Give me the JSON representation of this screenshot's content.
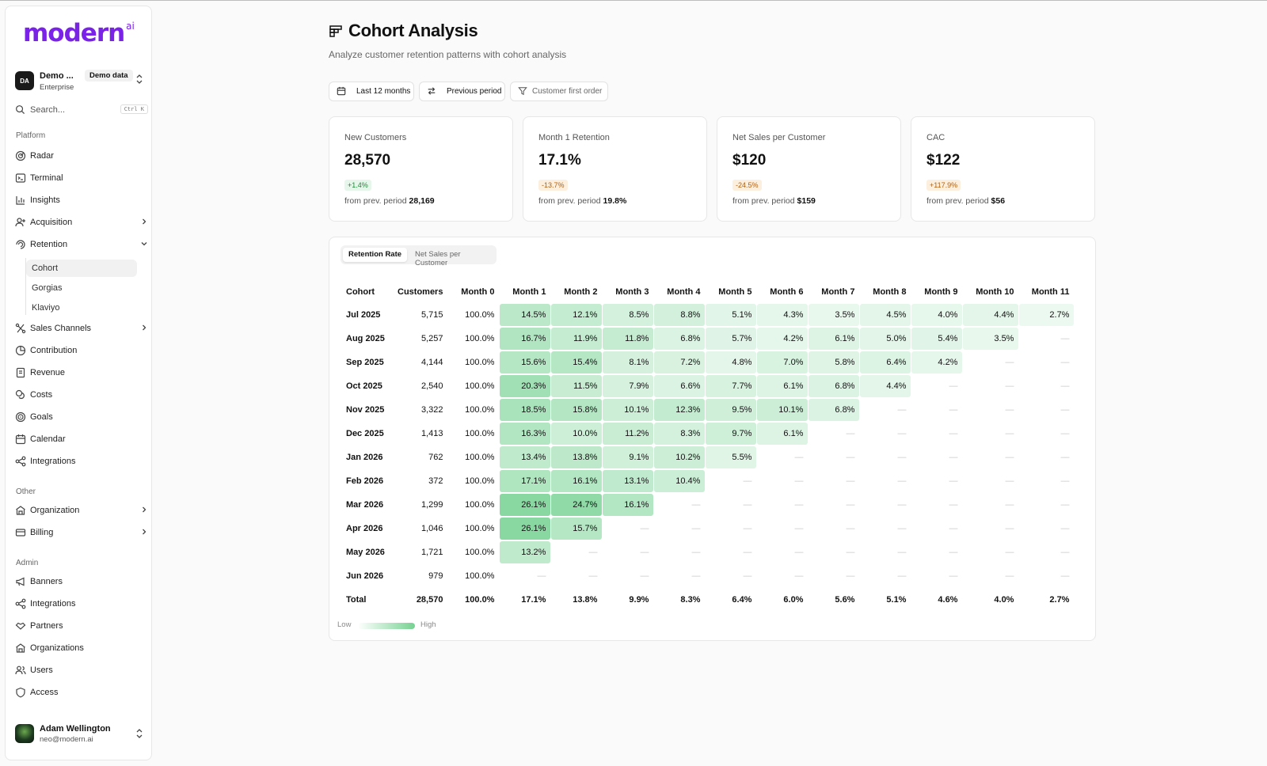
{
  "sidebar": {
    "logo": "modern",
    "logo_sup": "ai",
    "org": {
      "initials": "DA",
      "name": "Demo ...",
      "badge": "Demo data",
      "plan": "Enterprise"
    },
    "search": {
      "placeholder": "Search...",
      "shortcut": "Ctrl K"
    },
    "sections": {
      "platform": "Platform",
      "other": "Other",
      "admin": "Admin"
    },
    "items": {
      "radar": "Radar",
      "terminal": "Terminal",
      "insights": "Insights",
      "acquisition": "Acquisition",
      "retention": "Retention",
      "cohort": "Cohort",
      "gorgias": "Gorgias",
      "klaviyo": "Klaviyo",
      "sales_channels": "Sales Channels",
      "contribution": "Contribution",
      "revenue": "Revenue",
      "costs": "Costs",
      "goals": "Goals",
      "calendar": "Calendar",
      "integrations": "Integrations",
      "organization": "Organization",
      "billing": "Billing",
      "banners": "Banners",
      "admin_integrations": "Integrations",
      "partners": "Partners",
      "organizations": "Organizations",
      "users": "Users",
      "access": "Access"
    },
    "user": {
      "name": "Adam Wellington",
      "email": "neo@modern.ai"
    }
  },
  "header": {
    "title": "Cohort Analysis",
    "subtitle": "Analyze customer retention patterns with cohort analysis"
  },
  "filters": {
    "date": "Last 12 months",
    "compare": "Previous period",
    "cohort_by": "Customer first order"
  },
  "kpis": [
    {
      "label": "New Customers",
      "value": "28,570",
      "delta": "+1.4%",
      "prev_text": "from prev. period",
      "prev_value": "28,169"
    },
    {
      "label": "Month 1 Retention",
      "value": "17.1%",
      "delta": "-13.7%",
      "prev_text": "from prev. period",
      "prev_value": "19.8%"
    },
    {
      "label": "Net Sales per Customer",
      "value": "$120",
      "delta": "-24.5%",
      "prev_text": "from prev. period",
      "prev_value": "$159"
    },
    {
      "label": "CAC",
      "value": "$122",
      "delta": "+117.9%",
      "prev_text": "from prev. period",
      "prev_value": "$56"
    }
  ],
  "table": {
    "tabs": [
      "Retention Rate",
      "Net Sales per Customer"
    ],
    "headers": [
      "Cohort",
      "Customers",
      "Month 0",
      "Month 1",
      "Month 2",
      "Month 3",
      "Month 4",
      "Month 5",
      "Month 6",
      "Month 7",
      "Month 8",
      "Month 9",
      "Month 10",
      "Month 11"
    ],
    "rows": [
      [
        "Jul 2025",
        "5,715",
        "100.0%",
        "14.5%",
        "12.1%",
        "8.5%",
        "8.8%",
        "5.1%",
        "4.3%",
        "3.5%",
        "4.5%",
        "4.0%",
        "4.4%",
        "2.7%"
      ],
      [
        "Aug 2025",
        "5,257",
        "100.0%",
        "16.7%",
        "11.9%",
        "11.8%",
        "6.8%",
        "5.7%",
        "4.2%",
        "6.1%",
        "5.0%",
        "5.4%",
        "3.5%",
        "—"
      ],
      [
        "Sep 2025",
        "4,144",
        "100.0%",
        "15.6%",
        "15.4%",
        "8.1%",
        "7.2%",
        "4.8%",
        "7.0%",
        "5.8%",
        "6.4%",
        "4.2%",
        "—",
        "—"
      ],
      [
        "Oct 2025",
        "2,540",
        "100.0%",
        "20.3%",
        "11.5%",
        "7.9%",
        "6.6%",
        "7.7%",
        "6.1%",
        "6.8%",
        "4.4%",
        "—",
        "—",
        "—"
      ],
      [
        "Nov 2025",
        "3,322",
        "100.0%",
        "18.5%",
        "15.8%",
        "10.1%",
        "12.3%",
        "9.5%",
        "10.1%",
        "6.8%",
        "—",
        "—",
        "—",
        "—"
      ],
      [
        "Dec 2025",
        "1,413",
        "100.0%",
        "16.3%",
        "10.0%",
        "11.2%",
        "8.3%",
        "9.7%",
        "6.1%",
        "—",
        "—",
        "—",
        "—",
        "—"
      ],
      [
        "Jan 2026",
        "762",
        "100.0%",
        "13.4%",
        "13.8%",
        "9.1%",
        "10.2%",
        "5.5%",
        "—",
        "—",
        "—",
        "—",
        "—",
        "—"
      ],
      [
        "Feb 2026",
        "372",
        "100.0%",
        "17.1%",
        "16.1%",
        "13.1%",
        "10.4%",
        "—",
        "—",
        "—",
        "—",
        "—",
        "—",
        "—"
      ],
      [
        "Mar 2026",
        "1,299",
        "100.0%",
        "26.1%",
        "24.7%",
        "16.1%",
        "—",
        "—",
        "—",
        "—",
        "—",
        "—",
        "—",
        "—"
      ],
      [
        "Apr 2026",
        "1,046",
        "100.0%",
        "26.1%",
        "15.7%",
        "—",
        "—",
        "—",
        "—",
        "—",
        "—",
        "—",
        "—",
        "—"
      ],
      [
        "May 2026",
        "1,721",
        "100.0%",
        "13.2%",
        "—",
        "—",
        "—",
        "—",
        "—",
        "—",
        "—",
        "—",
        "—",
        "—"
      ],
      [
        "Jun 2026",
        "979",
        "100.0%",
        "—",
        "—",
        "—",
        "—",
        "—",
        "—",
        "—",
        "—",
        "—",
        "—",
        "—"
      ]
    ],
    "total": [
      "Total",
      "28,570",
      "100.0%",
      "17.1%",
      "13.8%",
      "9.9%",
      "8.3%",
      "6.4%",
      "6.0%",
      "5.6%",
      "5.1%",
      "4.6%",
      "4.0%",
      "2.7%"
    ],
    "legend": {
      "low": "Low",
      "high": "High"
    }
  },
  "colors": {
    "brand": "#7a22e8",
    "heat_high": "#76d292",
    "heat_low": "#ffffff",
    "positive": "#1f8a3b",
    "negative": "#b4600f"
  }
}
